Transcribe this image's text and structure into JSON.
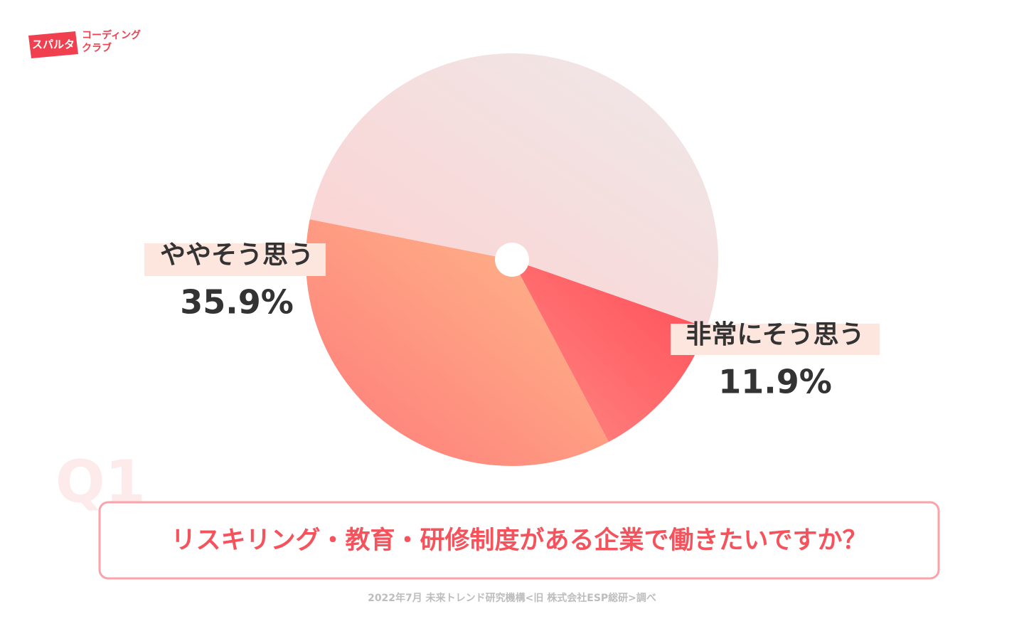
{
  "logo": {
    "mark": "スパルタ",
    "name_lines": [
      "コーディング",
      "クラブ"
    ]
  },
  "chart_data": {
    "type": "pie",
    "title": "リスキリング・教育・研修制度がある企業で働きたいですか？",
    "badge": "Q1",
    "source": "2022年7月 未来トレンド研究機構<旧 株式会社ESP総研>調べ",
    "categories": [
      "非常にそう思う",
      "ややそう思う",
      null
    ],
    "values": [
      11.9,
      35.9,
      52.2
    ],
    "value_labels": [
      "11.9%",
      "35.9%",
      null
    ],
    "colors": [
      [
        "#ff8a85",
        "#ff4a55"
      ],
      [
        "#ff7a7a",
        "#fdbb8a"
      ],
      [
        "#fdd0d0",
        "#efe9e9"
      ]
    ]
  }
}
